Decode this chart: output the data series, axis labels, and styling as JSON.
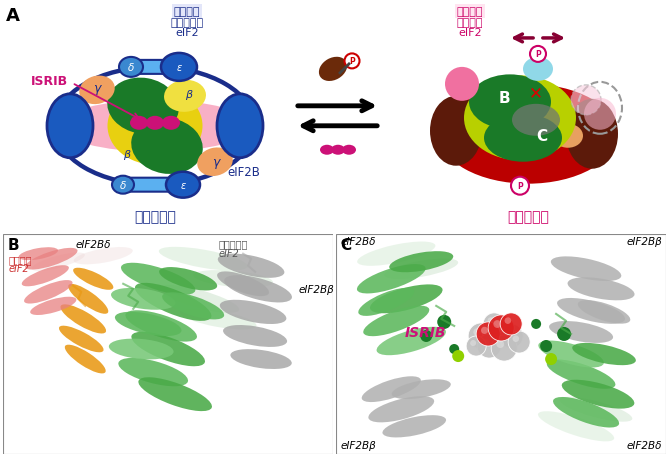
{
  "panel_A_label": "A",
  "panel_B_label": "B",
  "panel_C_label": "C",
  "active_title_line1": "反応基質",
  "active_title_line2": "非リン酸化",
  "active_title_line3": "eIF2",
  "active_subtitle": "活性型構造",
  "active_eIF2B": "eIF2B",
  "inhibited_title_line1": "阻害因子",
  "inhibited_title_line2": "リン酸化",
  "inhibited_title_line3": "eIF2",
  "inhibited_subtitle": "阻害型構造",
  "ISRIB_label": "ISRIB",
  "B_label": "B",
  "C_label": "C",
  "phospho_label_line1": "リン酸化",
  "phospho_label_line2": "eIF2",
  "non_phospho_label_line1": "非リン酸化",
  "non_phospho_label_line2": "eIF2",
  "eIF2Bbeta_label": "eIF2Bβ",
  "eIF2Bdelta_label": "eIF2Bδ",
  "eIF2Bdelta_tl": "eIF2Bδ",
  "eIF2Bbeta_tr": "eIF2Bβ",
  "ISRIB_c_label": "ISRIB",
  "eIF2Bbeta_bl": "eIF2Bβ",
  "eIF2Bdelta_br": "eIF2Bδ"
}
